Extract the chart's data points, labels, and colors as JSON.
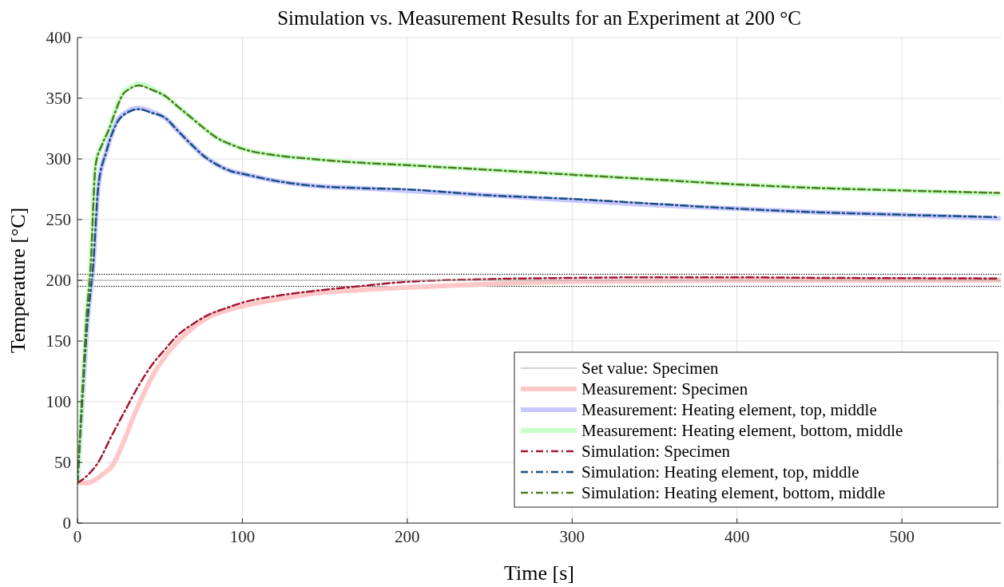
{
  "chart_data": {
    "type": "line",
    "title": "Simulation vs. Measurement Results for an Experiment at 200 °C",
    "xlabel": "Time [s]",
    "ylabel": "Temperature [°C]",
    "xlim": [
      0,
      560
    ],
    "ylim": [
      0,
      400
    ],
    "xticks": [
      0,
      100,
      200,
      300,
      400,
      500
    ],
    "yticks": [
      0,
      50,
      100,
      150,
      200,
      250,
      300,
      350,
      400
    ],
    "grid": true,
    "legend": "bottom right",
    "ref_lines": [
      {
        "axis": "y",
        "value": 205,
        "line_style": "dotted",
        "color": "#000000"
      },
      {
        "axis": "y",
        "value": 195,
        "line_style": "dotted",
        "color": "#000000"
      }
    ],
    "series": [
      {
        "name": "Set value: Specimen",
        "color": "#a6a6a6",
        "line_style": "solid",
        "x": [
          0,
          560
        ],
        "values": [
          200,
          200
        ]
      },
      {
        "name": "Measurement: Specimen",
        "color": "#ffc8c8",
        "line_style": "solid",
        "x": [
          0,
          5,
          10,
          15,
          21,
          28,
          35,
          40,
          45,
          53,
          61,
          70,
          80,
          90,
          101,
          120,
          142,
          170,
          198,
          250,
          300,
          400,
          500,
          560
        ],
        "values": [
          33,
          33,
          35,
          40,
          47,
          67,
          91,
          106,
          120,
          137,
          150,
          161,
          170,
          175,
          179,
          184,
          189,
          192,
          194,
          197,
          199,
          200,
          200,
          200
        ]
      },
      {
        "name": "Measurement: Heating element, top, middle",
        "color": "#c8c8ff",
        "line_style": "solid",
        "x": [
          0,
          3,
          6,
          9.5,
          12.6,
          17.5,
          24,
          30,
          37,
          45,
          53,
          61,
          69,
          77,
          85,
          93,
          101,
          120,
          142,
          170,
          198,
          250,
          300,
          350,
          400,
          450,
          500,
          559
        ],
        "values": [
          33,
          100,
          165,
          212,
          277,
          306,
          331,
          339,
          342,
          339,
          334,
          323,
          312,
          302,
          295,
          290,
          287.5,
          282,
          278,
          276,
          274,
          270,
          266,
          262,
          259,
          256,
          254,
          251
        ]
      },
      {
        "name": "Measurement: Heating element, bottom, middle",
        "color": "#c8ffc8",
        "line_style": "solid",
        "x": [
          0,
          3,
          5.5,
          8,
          11,
          15,
          19,
          23,
          27,
          32,
          37,
          45,
          53,
          61,
          69,
          77,
          85,
          93,
          101,
          120,
          142,
          170,
          198,
          250,
          300,
          350,
          400,
          450,
          500,
          559
        ],
        "values": [
          33,
          110,
          170,
          212,
          295,
          312,
          324,
          340,
          353,
          359,
          362,
          358,
          352,
          343,
          334,
          325,
          317,
          312,
          308,
          303,
          300,
          297,
          295,
          291,
          287,
          283,
          279,
          276,
          274,
          271
        ]
      },
      {
        "name": "Simulation: Specimen",
        "color": "#a2142f",
        "line_style": "dashed",
        "x": [
          0,
          5,
          13,
          20,
          29,
          37,
          45,
          53,
          61,
          70,
          80,
          90,
          101,
          120,
          142,
          170,
          198,
          250,
          300,
          350,
          400,
          450,
          500,
          559
        ],
        "values": [
          33,
          38,
          51,
          70,
          93,
          113,
          130,
          143,
          155,
          164,
          172,
          177,
          182,
          187,
          191,
          195,
          198.6,
          201,
          202,
          202.5,
          202.5,
          202,
          201.8,
          201.5
        ]
      },
      {
        "name": "Simulation: Heating element, top, middle",
        "color": "#184f80",
        "line_style": "dashed",
        "x": [
          0,
          3,
          6,
          9.5,
          12.6,
          17.5,
          24,
          30,
          37,
          45,
          53,
          61,
          69,
          77,
          85,
          93,
          101,
          120,
          142,
          170,
          198,
          250,
          300,
          350,
          400,
          450,
          500,
          559
        ],
        "values": [
          33,
          102,
          165,
          212,
          277,
          306,
          330,
          338,
          341,
          338,
          334,
          323,
          312,
          302,
          295,
          290,
          287.5,
          282,
          278,
          276,
          275,
          270,
          267,
          263,
          259,
          256,
          254,
          252
        ]
      },
      {
        "name": "Simulation: Heating element, bottom, middle",
        "color": "#4e7a22",
        "line_style": "dashed",
        "x": [
          0,
          3,
          5.5,
          8,
          11,
          15,
          19,
          23,
          27,
          32,
          37,
          45,
          53,
          61,
          69,
          77,
          85,
          93,
          101,
          120,
          142,
          170,
          198,
          250,
          300,
          350,
          400,
          450,
          500,
          559
        ],
        "values": [
          33,
          110,
          170,
          212,
          295,
          312,
          324,
          339,
          352,
          358,
          360.5,
          357,
          352,
          343,
          334,
          325,
          317,
          312,
          308,
          303,
          300,
          297,
          295,
          291,
          287,
          283,
          279,
          276,
          274,
          272
        ]
      }
    ]
  }
}
